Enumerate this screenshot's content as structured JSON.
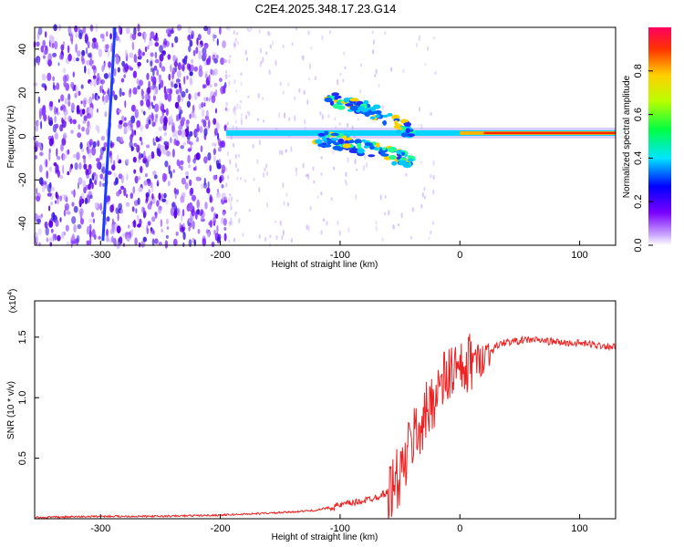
{
  "title": "C2E4.2025.348.17.23.G14",
  "colors": {
    "snr_line": "#ee2222",
    "axis": "#000000"
  },
  "chart_data": [
    {
      "type": "heatmap",
      "xlabel": "Height of straight line (km)",
      "ylabel": "Frequency (Hz)",
      "xlim": [
        -355,
        130
      ],
      "ylim": [
        -50,
        50
      ],
      "x_ticks": [
        -300,
        -200,
        -100,
        0,
        100
      ],
      "y_ticks": [
        -40,
        -20,
        0,
        20,
        40
      ],
      "colorbar": {
        "label": "Normalized spectral amplitude",
        "range": [
          0.0,
          1.0
        ],
        "ticks": [
          0.0,
          0.2,
          0.4,
          0.6,
          0.8
        ],
        "tick_labels": [
          "0.0",
          "0.2",
          "0.4",
          "0.6",
          "0.8"
        ],
        "colormap": "rainbow (white-violet-blue-cyan-green-yellow-red)"
      },
      "features": [
        {
          "name": "noise_region",
          "x_range": [
            -355,
            -195
          ],
          "f_range": [
            -50,
            50
          ]
        },
        {
          "name": "diagonal_streak",
          "from": [
            -298,
            -48
          ],
          "to": [
            -288,
            50
          ]
        },
        {
          "name": "carrier_line",
          "x_range": [
            -195,
            130
          ],
          "frequency": 1.5
        },
        {
          "name": "upper_branch",
          "points": [
            [
              -110,
              17
            ],
            [
              -80,
              13
            ],
            [
              -60,
              8
            ],
            [
              -40,
              2
            ]
          ]
        },
        {
          "name": "lower_branch",
          "points": [
            [
              -120,
              0
            ],
            [
              -90,
              -4
            ],
            [
              -60,
              -8
            ],
            [
              -40,
              -12
            ]
          ]
        }
      ]
    },
    {
      "type": "line",
      "xlabel": "Height of straight line (km)",
      "ylabel": "SNR (10 * v/v)",
      "y_multiplier": "(x10^4)",
      "y_multiplier_base": "(x10",
      "y_multiplier_exp": "4",
      "y_multiplier_close": ")",
      "xlim": [
        -355,
        130
      ],
      "ylim": [
        0.0,
        1.8
      ],
      "x_ticks": [
        -300,
        -200,
        -100,
        0,
        100
      ],
      "y_ticks": [
        0.5,
        1.0,
        1.5
      ],
      "y_tick_labels": [
        "0.5",
        "1.0",
        "1.5"
      ],
      "series": [
        {
          "x": [
            -355,
            -300,
            -250,
            -200,
            -150,
            -120,
            -110,
            -100,
            -90,
            -80,
            -70,
            -60,
            -55,
            -50,
            -45,
            -40,
            -35,
            -30,
            -25,
            -20,
            -15,
            -10,
            -5,
            0,
            5,
            10,
            15,
            20,
            25,
            30,
            35,
            40,
            50,
            60,
            70,
            80,
            90,
            100,
            110,
            120,
            130
          ],
          "y": [
            0.01,
            0.02,
            0.02,
            0.03,
            0.05,
            0.07,
            0.09,
            0.11,
            0.13,
            0.15,
            0.18,
            0.22,
            0.28,
            0.35,
            0.48,
            0.65,
            0.75,
            0.8,
            0.95,
            1.05,
            1.1,
            1.18,
            1.25,
            1.18,
            1.22,
            1.32,
            1.3,
            1.35,
            1.38,
            1.42,
            1.45,
            1.46,
            1.47,
            1.48,
            1.47,
            1.46,
            1.45,
            1.45,
            1.44,
            1.43,
            1.42
          ]
        }
      ]
    }
  ]
}
